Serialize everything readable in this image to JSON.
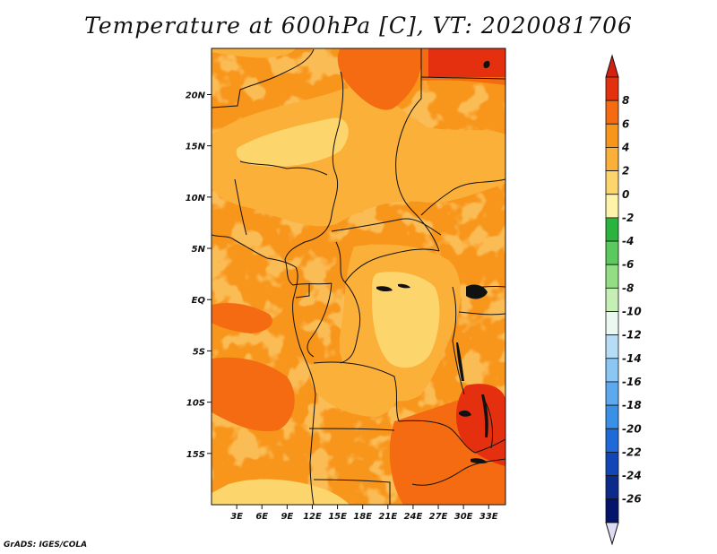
{
  "title": "Temperature at 600hPa [C], VT: 2020081706",
  "credit": "GrADS: IGES/COLA",
  "map": {
    "lon_min": 0,
    "lon_max": 35,
    "lat_min": -20,
    "lat_max": 24.5,
    "lat_ticks": [
      {
        "value": 20,
        "label": "20N"
      },
      {
        "value": 15,
        "label": "15N"
      },
      {
        "value": 10,
        "label": "10N"
      },
      {
        "value": 5,
        "label": "5N"
      },
      {
        "value": 0,
        "label": "EQ"
      },
      {
        "value": -5,
        "label": "5S"
      },
      {
        "value": -10,
        "label": "10S"
      },
      {
        "value": -15,
        "label": "15S"
      }
    ],
    "lon_ticks": [
      {
        "value": 3,
        "label": "3E"
      },
      {
        "value": 6,
        "label": "6E"
      },
      {
        "value": 9,
        "label": "9E"
      },
      {
        "value": 12,
        "label": "12E"
      },
      {
        "value": 15,
        "label": "15E"
      },
      {
        "value": 18,
        "label": "18E"
      },
      {
        "value": 21,
        "label": "21E"
      },
      {
        "value": 24,
        "label": "24E"
      },
      {
        "value": 27,
        "label": "27E"
      },
      {
        "value": 30,
        "label": "30E"
      },
      {
        "value": 33,
        "label": "33E"
      }
    ]
  },
  "colorbar": {
    "labels": [
      "8",
      "6",
      "4",
      "2",
      "0",
      "-2",
      "-4",
      "-6",
      "-8",
      "-10",
      "-12",
      "-14",
      "-16",
      "-18",
      "-20",
      "-22",
      "-24",
      "-26"
    ],
    "colors": [
      "#e53010",
      "#f46b12",
      "#f8951b",
      "#fbb03a",
      "#fcd66c",
      "#fdf4a9",
      "#2ab43e",
      "#5bc95d",
      "#93dd85",
      "#c5efb4",
      "#ebf8f2",
      "#b6dcf6",
      "#8cc6f3",
      "#5ca9ee",
      "#3a8fe6",
      "#1f6ad8",
      "#1246b6",
      "#0b2a8c",
      "#04146a"
    ],
    "top_arrow_color": "#d42010",
    "bottom_arrow_color": "#dcdcf4"
  }
}
